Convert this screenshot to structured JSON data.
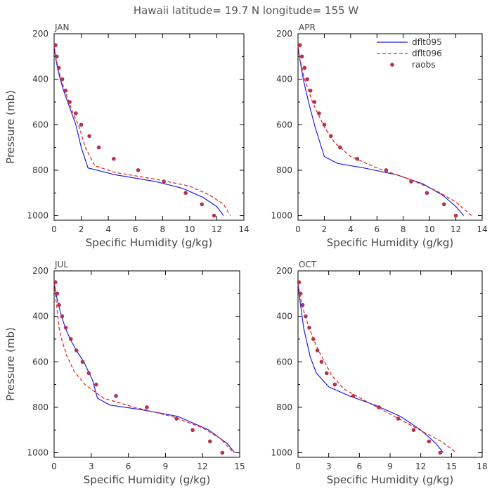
{
  "figure": {
    "title": "Hawaii  latitude= 19.7 N longitude= 155 W"
  },
  "legend": {
    "placement": "top-right of APR panel",
    "entries": [
      {
        "label": "dflt095",
        "color": "#1f1fe6",
        "style": "solid"
      },
      {
        "label": "dflt096",
        "color": "#e0201f",
        "style": "dashed"
      },
      {
        "label": "raobs",
        "color": "#b3334d",
        "style": "dot"
      }
    ]
  },
  "chart_data": [
    {
      "type": "line",
      "title": "JAN",
      "xlabel": "Specific Humidity (g/kg)",
      "ylabel": "Pressure (mb)",
      "xlim": [
        0,
        14
      ],
      "ylim": [
        1020,
        200
      ],
      "xticks": [
        "0",
        "2",
        "4",
        "6",
        "8",
        "10",
        "12",
        "14"
      ],
      "yticks": [
        "200",
        "400",
        "600",
        "800",
        "1000"
      ],
      "series": [
        {
          "name": "dflt095",
          "x": [
            0.0,
            0.1,
            0.25,
            0.45,
            0.7,
            1.0,
            1.3,
            1.6,
            2.0,
            2.5,
            4.5,
            7.5,
            9.5,
            11.0,
            12.0,
            12.5
          ],
          "y": [
            250,
            300,
            350,
            400,
            450,
            500,
            550,
            600,
            700,
            790,
            820,
            850,
            880,
            920,
            960,
            1000
          ]
        },
        {
          "name": "dflt096",
          "x": [
            0.0,
            0.1,
            0.3,
            0.5,
            0.8,
            1.1,
            1.4,
            1.8,
            2.3,
            3.0,
            4.5,
            7.5,
            10.0,
            11.5,
            12.5,
            13.0
          ],
          "y": [
            250,
            300,
            350,
            400,
            450,
            500,
            550,
            600,
            700,
            780,
            810,
            840,
            870,
            910,
            950,
            1000
          ]
        },
        {
          "name": "raobs",
          "x": [
            0.1,
            0.2,
            0.35,
            0.6,
            0.85,
            1.15,
            1.6,
            2.0,
            2.6,
            3.3,
            4.4,
            6.2,
            8.1,
            9.7,
            10.9,
            11.8
          ],
          "y": [
            250,
            300,
            350,
            400,
            450,
            500,
            550,
            600,
            650,
            700,
            750,
            800,
            850,
            900,
            950,
            1000
          ]
        }
      ]
    },
    {
      "type": "line",
      "title": "APR",
      "xlabel": "Specific Humidity (g/kg)",
      "ylabel": "",
      "xlim": [
        0,
        14
      ],
      "ylim": [
        1020,
        200
      ],
      "xticks": [
        "0",
        "2",
        "4",
        "6",
        "8",
        "10",
        "12",
        "14"
      ],
      "yticks": [
        "200",
        "400",
        "600",
        "800",
        "1000"
      ],
      "series": [
        {
          "name": "dflt095",
          "x": [
            0.0,
            0.1,
            0.25,
            0.4,
            0.6,
            0.8,
            1.3,
            2.0,
            3.0,
            5.0,
            7.5,
            9.5,
            11.0,
            12.0,
            12.6
          ],
          "y": [
            250,
            300,
            350,
            400,
            450,
            500,
            610,
            740,
            770,
            790,
            820,
            860,
            910,
            960,
            1000
          ]
        },
        {
          "name": "dflt096",
          "x": [
            0.0,
            0.1,
            0.3,
            0.5,
            0.8,
            1.1,
            1.5,
            2.0,
            2.8,
            4.0,
            6.0,
            8.5,
            10.5,
            12.0,
            13.2
          ],
          "y": [
            250,
            300,
            350,
            400,
            450,
            500,
            550,
            610,
            680,
            740,
            790,
            840,
            890,
            940,
            1000
          ]
        },
        {
          "name": "raobs",
          "x": [
            0.15,
            0.3,
            0.5,
            0.7,
            0.95,
            1.25,
            1.6,
            2.0,
            2.5,
            3.2,
            4.5,
            6.7,
            8.6,
            9.8,
            11.1,
            12.0
          ],
          "y": [
            250,
            300,
            350,
            400,
            450,
            500,
            550,
            600,
            650,
            700,
            750,
            800,
            850,
            900,
            950,
            1000
          ]
        }
      ]
    },
    {
      "type": "line",
      "title": "JUL",
      "xlabel": "Specific Humidity (g/kg)",
      "ylabel": "Pressure (mb)",
      "xlim": [
        0,
        15
      ],
      "ylim": [
        1020,
        200
      ],
      "xticks": [
        "0",
        "3",
        "6",
        "9",
        "12",
        "15"
      ],
      "yticks": [
        "200",
        "400",
        "600",
        "800",
        "1000"
      ],
      "series": [
        {
          "name": "dflt095",
          "x": [
            0.0,
            0.15,
            0.35,
            0.6,
            0.9,
            1.3,
            1.8,
            2.4,
            3.1,
            3.5,
            4.5,
            7.0,
            10.0,
            12.5,
            14.0,
            14.6
          ],
          "y": [
            250,
            300,
            350,
            400,
            450,
            500,
            550,
            600,
            680,
            760,
            790,
            810,
            840,
            900,
            960,
            1000
          ]
        },
        {
          "name": "dflt096",
          "x": [
            0.0,
            0.1,
            0.2,
            0.3,
            0.4,
            0.6,
            1.0,
            1.6,
            2.5,
            4.0,
            6.5,
            9.5,
            12.0,
            13.5,
            14.5
          ],
          "y": [
            250,
            300,
            350,
            400,
            450,
            500,
            570,
            640,
            700,
            760,
            800,
            840,
            890,
            940,
            1000
          ]
        },
        {
          "name": "raobs",
          "x": [
            0.1,
            0.25,
            0.4,
            0.65,
            0.95,
            1.35,
            1.8,
            2.3,
            2.8,
            3.4,
            5.0,
            7.5,
            9.9,
            11.2,
            12.6,
            13.6
          ],
          "y": [
            250,
            300,
            350,
            400,
            450,
            500,
            550,
            600,
            650,
            700,
            750,
            800,
            850,
            900,
            950,
            1000
          ]
        }
      ]
    },
    {
      "type": "line",
      "title": "OCT",
      "xlabel": "Specific Humidity (g/kg)",
      "ylabel": "",
      "xlim": [
        0,
        18
      ],
      "ylim": [
        1020,
        200
      ],
      "xticks": [
        "0",
        "3",
        "6",
        "9",
        "12",
        "15",
        "18"
      ],
      "yticks": [
        "200",
        "400",
        "600",
        "800",
        "1000"
      ],
      "series": [
        {
          "name": "dflt095",
          "x": [
            0.0,
            0.1,
            0.25,
            0.4,
            0.55,
            0.8,
            1.2,
            1.8,
            3.0,
            5.0,
            7.5,
            10.0,
            12.0,
            13.5,
            14.2
          ],
          "y": [
            250,
            300,
            350,
            400,
            450,
            500,
            580,
            650,
            710,
            750,
            790,
            840,
            900,
            960,
            1000
          ]
        },
        {
          "name": "dflt096",
          "x": [
            0.0,
            0.15,
            0.4,
            0.7,
            1.1,
            1.5,
            2.0,
            2.6,
            3.3,
            4.5,
            6.5,
            9.0,
            11.5,
            14.0,
            15.5
          ],
          "y": [
            250,
            300,
            350,
            400,
            450,
            500,
            550,
            600,
            660,
            720,
            770,
            830,
            890,
            950,
            1000
          ]
        },
        {
          "name": "raobs",
          "x": [
            0.1,
            0.25,
            0.45,
            0.75,
            1.1,
            1.5,
            1.9,
            2.3,
            2.8,
            3.6,
            5.4,
            7.9,
            9.8,
            11.3,
            12.8,
            13.9
          ],
          "y": [
            250,
            300,
            350,
            400,
            450,
            500,
            550,
            600,
            650,
            700,
            750,
            800,
            850,
            900,
            950,
            1000
          ]
        }
      ]
    }
  ]
}
